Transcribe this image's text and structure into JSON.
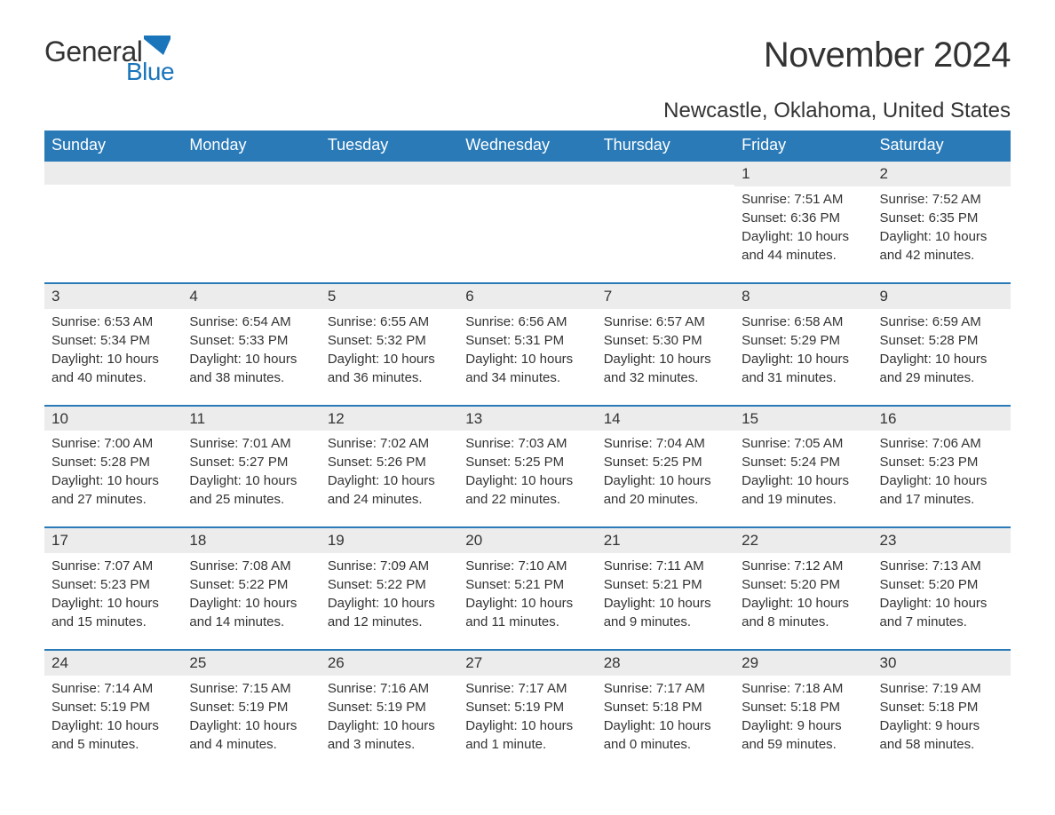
{
  "logo": {
    "main": "General",
    "sub": "Blue"
  },
  "title": "November 2024",
  "location": "Newcastle, Oklahoma, United States",
  "colors": {
    "header_bg": "#2a7ab8",
    "header_text": "#ffffff",
    "accent": "#1b75bb",
    "daynum_bg": "#ececec",
    "body_text": "#333333",
    "page_bg": "#ffffff"
  },
  "weekdays": [
    "Sunday",
    "Monday",
    "Tuesday",
    "Wednesday",
    "Thursday",
    "Friday",
    "Saturday"
  ],
  "weeks": [
    [
      {
        "empty": true
      },
      {
        "empty": true
      },
      {
        "empty": true
      },
      {
        "empty": true
      },
      {
        "empty": true
      },
      {
        "day": "1",
        "sunrise": "Sunrise: 7:51 AM",
        "sunset": "Sunset: 6:36 PM",
        "daylight": "Daylight: 10 hours and 44 minutes."
      },
      {
        "day": "2",
        "sunrise": "Sunrise: 7:52 AM",
        "sunset": "Sunset: 6:35 PM",
        "daylight": "Daylight: 10 hours and 42 minutes."
      }
    ],
    [
      {
        "day": "3",
        "sunrise": "Sunrise: 6:53 AM",
        "sunset": "Sunset: 5:34 PM",
        "daylight": "Daylight: 10 hours and 40 minutes."
      },
      {
        "day": "4",
        "sunrise": "Sunrise: 6:54 AM",
        "sunset": "Sunset: 5:33 PM",
        "daylight": "Daylight: 10 hours and 38 minutes."
      },
      {
        "day": "5",
        "sunrise": "Sunrise: 6:55 AM",
        "sunset": "Sunset: 5:32 PM",
        "daylight": "Daylight: 10 hours and 36 minutes."
      },
      {
        "day": "6",
        "sunrise": "Sunrise: 6:56 AM",
        "sunset": "Sunset: 5:31 PM",
        "daylight": "Daylight: 10 hours and 34 minutes."
      },
      {
        "day": "7",
        "sunrise": "Sunrise: 6:57 AM",
        "sunset": "Sunset: 5:30 PM",
        "daylight": "Daylight: 10 hours and 32 minutes."
      },
      {
        "day": "8",
        "sunrise": "Sunrise: 6:58 AM",
        "sunset": "Sunset: 5:29 PM",
        "daylight": "Daylight: 10 hours and 31 minutes."
      },
      {
        "day": "9",
        "sunrise": "Sunrise: 6:59 AM",
        "sunset": "Sunset: 5:28 PM",
        "daylight": "Daylight: 10 hours and 29 minutes."
      }
    ],
    [
      {
        "day": "10",
        "sunrise": "Sunrise: 7:00 AM",
        "sunset": "Sunset: 5:28 PM",
        "daylight": "Daylight: 10 hours and 27 minutes."
      },
      {
        "day": "11",
        "sunrise": "Sunrise: 7:01 AM",
        "sunset": "Sunset: 5:27 PM",
        "daylight": "Daylight: 10 hours and 25 minutes."
      },
      {
        "day": "12",
        "sunrise": "Sunrise: 7:02 AM",
        "sunset": "Sunset: 5:26 PM",
        "daylight": "Daylight: 10 hours and 24 minutes."
      },
      {
        "day": "13",
        "sunrise": "Sunrise: 7:03 AM",
        "sunset": "Sunset: 5:25 PM",
        "daylight": "Daylight: 10 hours and 22 minutes."
      },
      {
        "day": "14",
        "sunrise": "Sunrise: 7:04 AM",
        "sunset": "Sunset: 5:25 PM",
        "daylight": "Daylight: 10 hours and 20 minutes."
      },
      {
        "day": "15",
        "sunrise": "Sunrise: 7:05 AM",
        "sunset": "Sunset: 5:24 PM",
        "daylight": "Daylight: 10 hours and 19 minutes."
      },
      {
        "day": "16",
        "sunrise": "Sunrise: 7:06 AM",
        "sunset": "Sunset: 5:23 PM",
        "daylight": "Daylight: 10 hours and 17 minutes."
      }
    ],
    [
      {
        "day": "17",
        "sunrise": "Sunrise: 7:07 AM",
        "sunset": "Sunset: 5:23 PM",
        "daylight": "Daylight: 10 hours and 15 minutes."
      },
      {
        "day": "18",
        "sunrise": "Sunrise: 7:08 AM",
        "sunset": "Sunset: 5:22 PM",
        "daylight": "Daylight: 10 hours and 14 minutes."
      },
      {
        "day": "19",
        "sunrise": "Sunrise: 7:09 AM",
        "sunset": "Sunset: 5:22 PM",
        "daylight": "Daylight: 10 hours and 12 minutes."
      },
      {
        "day": "20",
        "sunrise": "Sunrise: 7:10 AM",
        "sunset": "Sunset: 5:21 PM",
        "daylight": "Daylight: 10 hours and 11 minutes."
      },
      {
        "day": "21",
        "sunrise": "Sunrise: 7:11 AM",
        "sunset": "Sunset: 5:21 PM",
        "daylight": "Daylight: 10 hours and 9 minutes."
      },
      {
        "day": "22",
        "sunrise": "Sunrise: 7:12 AM",
        "sunset": "Sunset: 5:20 PM",
        "daylight": "Daylight: 10 hours and 8 minutes."
      },
      {
        "day": "23",
        "sunrise": "Sunrise: 7:13 AM",
        "sunset": "Sunset: 5:20 PM",
        "daylight": "Daylight: 10 hours and 7 minutes."
      }
    ],
    [
      {
        "day": "24",
        "sunrise": "Sunrise: 7:14 AM",
        "sunset": "Sunset: 5:19 PM",
        "daylight": "Daylight: 10 hours and 5 minutes."
      },
      {
        "day": "25",
        "sunrise": "Sunrise: 7:15 AM",
        "sunset": "Sunset: 5:19 PM",
        "daylight": "Daylight: 10 hours and 4 minutes."
      },
      {
        "day": "26",
        "sunrise": "Sunrise: 7:16 AM",
        "sunset": "Sunset: 5:19 PM",
        "daylight": "Daylight: 10 hours and 3 minutes."
      },
      {
        "day": "27",
        "sunrise": "Sunrise: 7:17 AM",
        "sunset": "Sunset: 5:19 PM",
        "daylight": "Daylight: 10 hours and 1 minute."
      },
      {
        "day": "28",
        "sunrise": "Sunrise: 7:17 AM",
        "sunset": "Sunset: 5:18 PM",
        "daylight": "Daylight: 10 hours and 0 minutes."
      },
      {
        "day": "29",
        "sunrise": "Sunrise: 7:18 AM",
        "sunset": "Sunset: 5:18 PM",
        "daylight": "Daylight: 9 hours and 59 minutes."
      },
      {
        "day": "30",
        "sunrise": "Sunrise: 7:19 AM",
        "sunset": "Sunset: 5:18 PM",
        "daylight": "Daylight: 9 hours and 58 minutes."
      }
    ]
  ]
}
